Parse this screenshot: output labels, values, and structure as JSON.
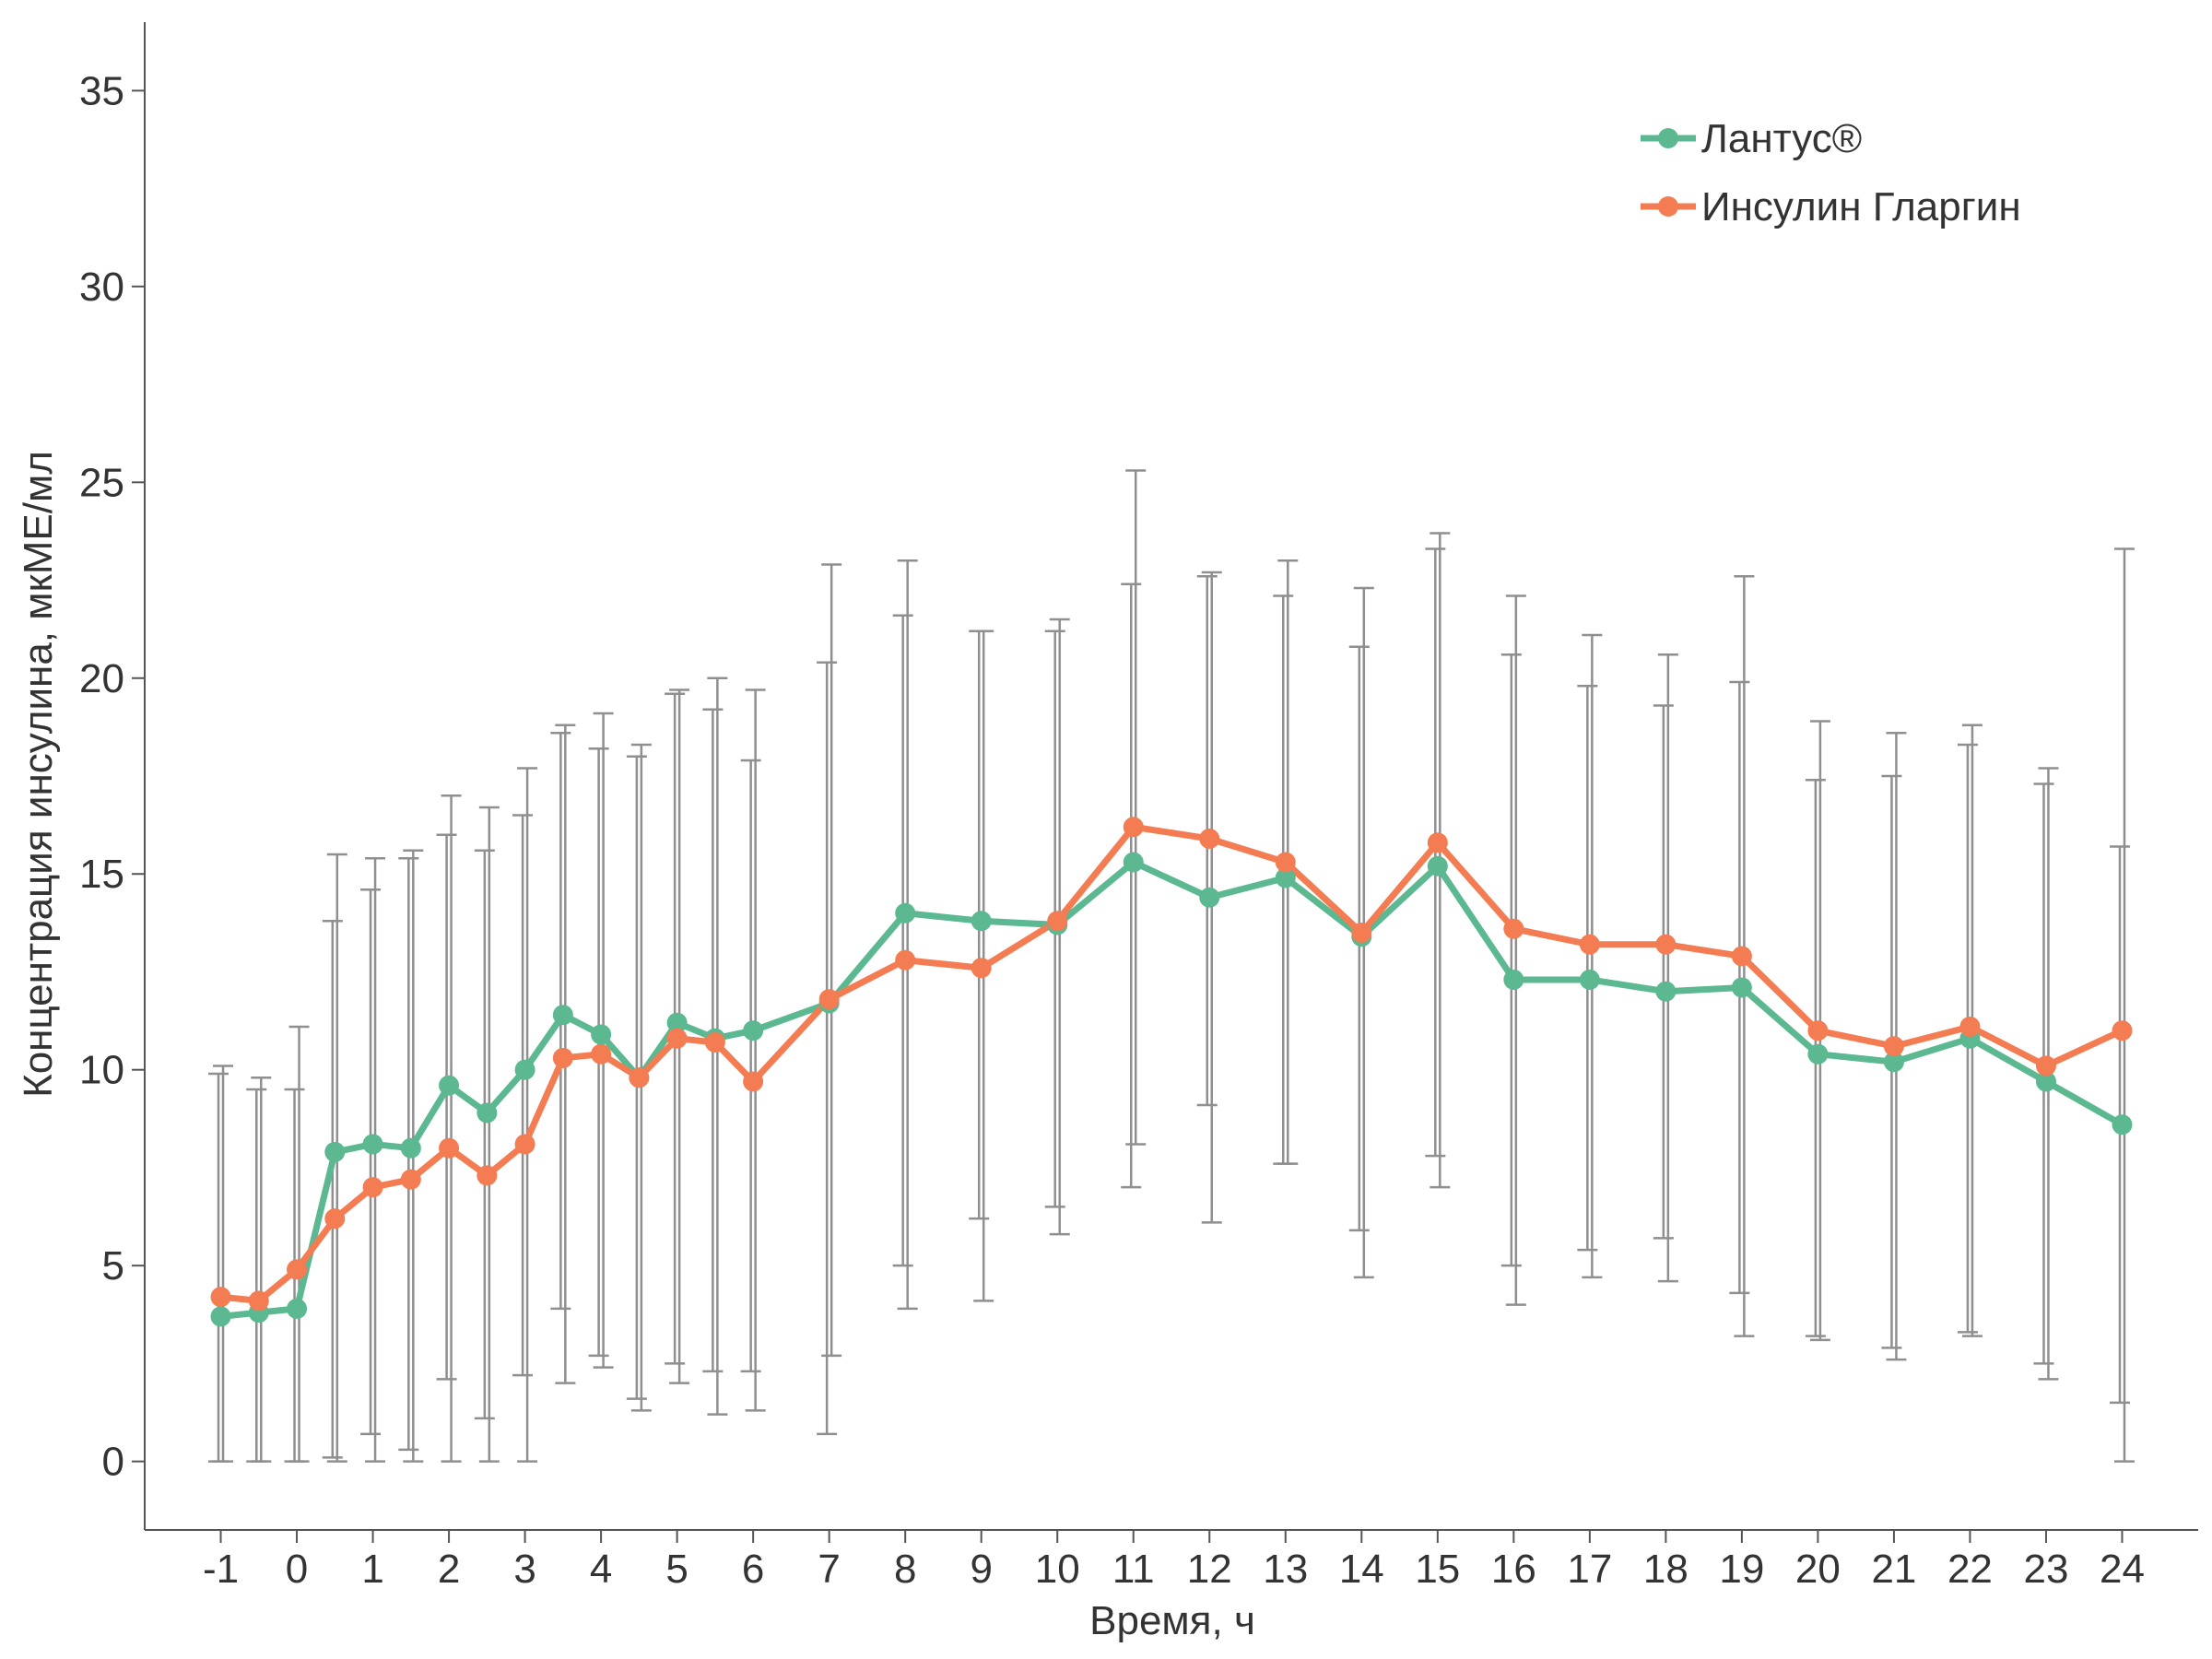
{
  "chart_data": {
    "type": "line",
    "xlabel": "Время, ч",
    "ylabel": "Концентрация инсулина, мкМЕ/мл",
    "xlim": [
      -2,
      25
    ],
    "ylim": [
      -1.75,
      36.75
    ],
    "xticks": [
      "-1",
      "0",
      "1",
      "2",
      "3",
      "4",
      "5",
      "6",
      "7",
      "8",
      "9",
      "10",
      "11",
      "12",
      "13",
      "14",
      "15",
      "16",
      "17",
      "18",
      "19",
      "20",
      "21",
      "22",
      "23",
      "24"
    ],
    "yticks": [
      "0",
      "5",
      "10",
      "15",
      "20",
      "25",
      "30",
      "35"
    ],
    "grid": false,
    "legend_position": "top-right",
    "x": [
      -1,
      -0.5,
      0,
      0.5,
      1,
      1.5,
      2,
      2.5,
      3,
      3.5,
      4,
      4.5,
      5,
      5.5,
      6,
      7,
      8,
      9,
      10,
      11,
      12,
      13,
      14,
      15,
      16,
      17,
      18,
      19,
      20,
      21,
      22,
      23,
      24
    ],
    "series": [
      {
        "name": "Лантус®",
        "color": "#5bb891",
        "values": [
          3.7,
          3.8,
          3.9,
          7.9,
          8.1,
          8.0,
          9.6,
          8.9,
          10.0,
          11.4,
          10.9,
          9.8,
          11.2,
          10.8,
          11.0,
          11.7,
          14.0,
          13.8,
          13.7,
          15.3,
          14.4,
          14.9,
          13.4,
          15.2,
          12.3,
          12.3,
          12.0,
          12.1,
          10.4,
          10.2,
          10.8,
          9.7,
          8.6
        ],
        "err_low": [
          0,
          0,
          0,
          0.1,
          0.7,
          0.3,
          2.1,
          1.1,
          2.2,
          3.9,
          2.7,
          1.6,
          2.5,
          2.3,
          2.3,
          0.7,
          5.0,
          6.2,
          6.5,
          7.0,
          9.1,
          7.6,
          5.9,
          7.8,
          5.0,
          5.4,
          5.7,
          4.3,
          3.2,
          2.9,
          3.3,
          2.5,
          1.5
        ],
        "err_high": [
          9.9,
          9.5,
          9.5,
          13.8,
          14.6,
          15.4,
          16.0,
          15.6,
          16.5,
          18.6,
          18.2,
          18.0,
          19.6,
          19.2,
          17.9,
          20.4,
          21.6,
          21.2,
          21.2,
          22.4,
          22.6,
          22.1,
          20.8,
          23.3,
          20.6,
          19.8,
          19.3,
          19.9,
          17.4,
          17.5,
          18.3,
          17.3,
          15.7
        ]
      },
      {
        "name": "Инсулин Гларгин",
        "color": "#f47c52",
        "values": [
          4.2,
          4.1,
          4.9,
          6.2,
          7.0,
          7.2,
          8.0,
          7.3,
          8.1,
          10.3,
          10.4,
          9.8,
          10.8,
          10.7,
          9.7,
          11.8,
          12.8,
          12.6,
          13.8,
          16.2,
          15.9,
          15.3,
          13.5,
          15.8,
          13.6,
          13.2,
          13.2,
          12.9,
          11.0,
          10.6,
          11.1,
          10.1,
          11.0
        ],
        "err_low": [
          0,
          0,
          0,
          0,
          0,
          0,
          0,
          0,
          0,
          2.0,
          2.4,
          1.3,
          2.0,
          1.2,
          1.3,
          2.7,
          3.9,
          4.1,
          5.8,
          8.1,
          6.1,
          7.6,
          4.7,
          7.0,
          4.0,
          4.7,
          4.6,
          3.2,
          3.1,
          2.6,
          3.2,
          2.1,
          0
        ],
        "err_high": [
          10.1,
          9.8,
          11.1,
          15.5,
          15.4,
          15.6,
          17.0,
          16.7,
          17.7,
          18.8,
          19.1,
          18.3,
          19.7,
          20.0,
          19.7,
          22.9,
          23.0,
          21.2,
          21.5,
          25.3,
          22.7,
          23.0,
          22.3,
          23.7,
          22.1,
          21.1,
          20.6,
          22.6,
          18.9,
          18.6,
          18.8,
          17.7,
          23.3
        ]
      }
    ]
  }
}
